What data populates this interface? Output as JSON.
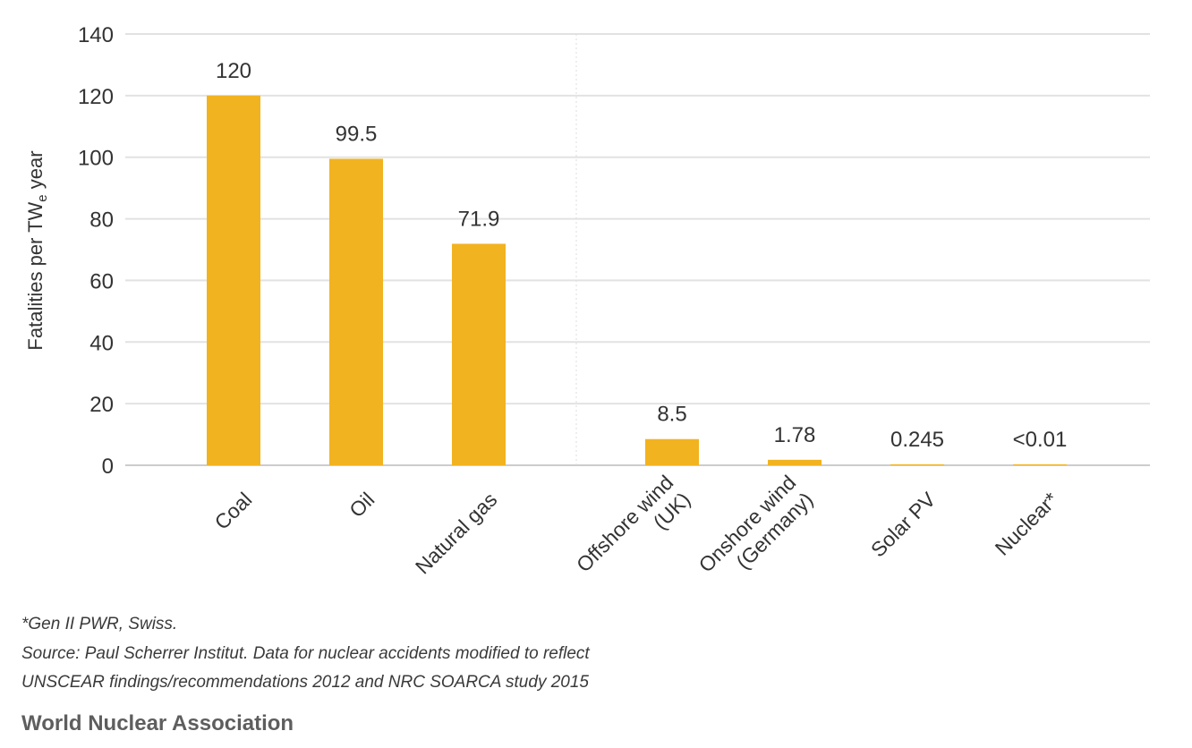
{
  "chart_data": {
    "type": "bar",
    "title": "",
    "ylabel": "Fatalities per TW",
    "ylabel_subscript": "e",
    "ylabel_suffix": " year",
    "xlabel": "",
    "ylim": [
      0,
      140
    ],
    "yticks": [
      "0",
      "20",
      "40",
      "60",
      "80",
      "100",
      "120",
      "140"
    ],
    "grid": true,
    "bar_color": "#f2b320",
    "categories": [
      {
        "lines": [
          "Coal"
        ],
        "value": 120,
        "label": "120"
      },
      {
        "lines": [
          "Oil"
        ],
        "value": 99.5,
        "label": "99.5"
      },
      {
        "lines": [
          "Natural gas"
        ],
        "value": 71.9,
        "label": "71.9"
      },
      {
        "lines": [
          "Offshore wind",
          "(UK)"
        ],
        "value": 8.5,
        "label": "8.5"
      },
      {
        "lines": [
          "Onshore wind",
          "(Germany)"
        ],
        "value": 1.78,
        "label": "1.78"
      },
      {
        "lines": [
          "Solar PV"
        ],
        "value": 0.245,
        "label": "0.245"
      },
      {
        "lines": [
          "Nuclear*"
        ],
        "value": 0.01,
        "label": "<0.01"
      }
    ]
  },
  "footnotes": {
    "line1": "*Gen II PWR, Swiss.",
    "line2": "Source: Paul Scherrer Institut. Data for nuclear accidents modified to reflect",
    "line3": "UNSCEAR findings/recommendations 2012 and NRC SOARCA study 2015"
  },
  "brand": "World Nuclear Association"
}
